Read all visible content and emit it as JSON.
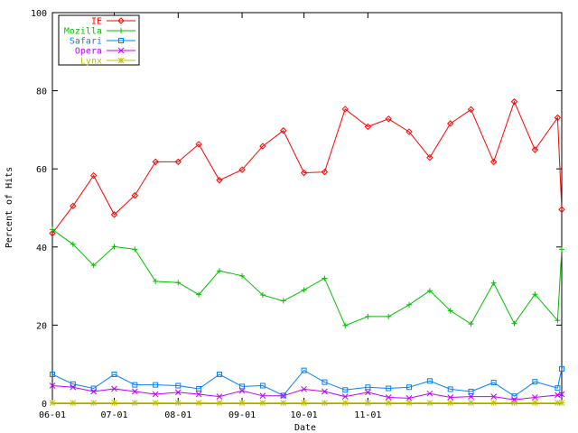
{
  "chart_data": {
    "type": "line",
    "xlabel": "Date",
    "ylabel": "Percent of Hits",
    "ylim": [
      0,
      100
    ],
    "yticks": [
      0,
      20,
      40,
      60,
      80,
      100
    ],
    "x": [
      "2004-06-01",
      "2004-06-11",
      "2004-06-21",
      "2004-07-01",
      "2004-07-11",
      "2004-07-21",
      "2004-08-01",
      "2004-08-11",
      "2004-08-21",
      "2004-09-01",
      "2004-09-11",
      "2004-09-21",
      "2004-10-01",
      "2004-10-11",
      "2004-10-21",
      "2004-11-01",
      "2004-11-11",
      "2004-11-21",
      "2004-12-01",
      "2004-12-11",
      "2004-12-21",
      "2005-01-01",
      "2005-01-11",
      "2005-01-21",
      "2005-02-01",
      "2005-02-03"
    ],
    "xlim": [
      "2004-06-01",
      "2005-02-03"
    ],
    "xticks": [
      {
        "label": "06-01",
        "date": "2004-06-01"
      },
      {
        "label": "07-01",
        "date": "2004-07-01"
      },
      {
        "label": "08-01",
        "date": "2004-08-01"
      },
      {
        "label": "09-01",
        "date": "2004-09-01"
      },
      {
        "label": "10-01",
        "date": "2004-10-01"
      },
      {
        "label": "11-01",
        "date": "2004-11-01"
      }
    ],
    "grid": false,
    "legend_position": "top-left",
    "series": [
      {
        "name": "IE",
        "color": "#ff0000",
        "marker": "diamond",
        "values": [
          43.5,
          50.5,
          58.3,
          48.3,
          53.2,
          61.8,
          61.8,
          66.3,
          57.1,
          59.8,
          65.8,
          69.8,
          59.0,
          59.2,
          75.3,
          70.8,
          72.8,
          69.5,
          62.9,
          71.6,
          75.2,
          61.8,
          77.2,
          64.9,
          73.1,
          49.6
        ]
      },
      {
        "name": "Mozilla",
        "color": "#00c000",
        "marker": "plus",
        "values": [
          44.5,
          40.7,
          35.3,
          40.1,
          39.4,
          31.2,
          30.9,
          27.8,
          33.9,
          32.6,
          27.7,
          26.2,
          29.0,
          32.0,
          19.9,
          22.2,
          22.2,
          25.2,
          28.8,
          23.7,
          20.3,
          30.8,
          20.4,
          27.9,
          21.2,
          39.4
        ]
      },
      {
        "name": "Safari",
        "color": "#0080ff",
        "marker": "square",
        "values": [
          7.4,
          4.9,
          3.8,
          7.4,
          4.7,
          4.7,
          4.5,
          3.7,
          7.4,
          4.3,
          4.5,
          2.0,
          8.4,
          5.4,
          3.4,
          4.1,
          3.8,
          4.1,
          5.7,
          3.6,
          3.0,
          5.3,
          1.8,
          5.5,
          3.9,
          8.8
        ]
      },
      {
        "name": "Opera",
        "color": "#c000ff",
        "marker": "x",
        "values": [
          4.5,
          4.1,
          3.0,
          3.7,
          3.0,
          2.3,
          2.8,
          2.3,
          1.7,
          3.2,
          1.9,
          1.9,
          3.6,
          3.0,
          1.7,
          2.8,
          1.5,
          1.3,
          2.5,
          1.5,
          1.7,
          1.7,
          0.9,
          1.5,
          2.1,
          2.3
        ]
      },
      {
        "name": "Lynx",
        "color": "#c0c000",
        "marker": "star",
        "values": [
          0.1,
          0.1,
          0.1,
          0.1,
          0.1,
          0.1,
          0.1,
          0.1,
          0.1,
          0.1,
          0.1,
          0.1,
          0.1,
          0.1,
          0.1,
          0.1,
          0.1,
          0.1,
          0.1,
          0.1,
          0.1,
          0.1,
          0.1,
          0.1,
          0.1,
          0.1
        ]
      }
    ]
  }
}
